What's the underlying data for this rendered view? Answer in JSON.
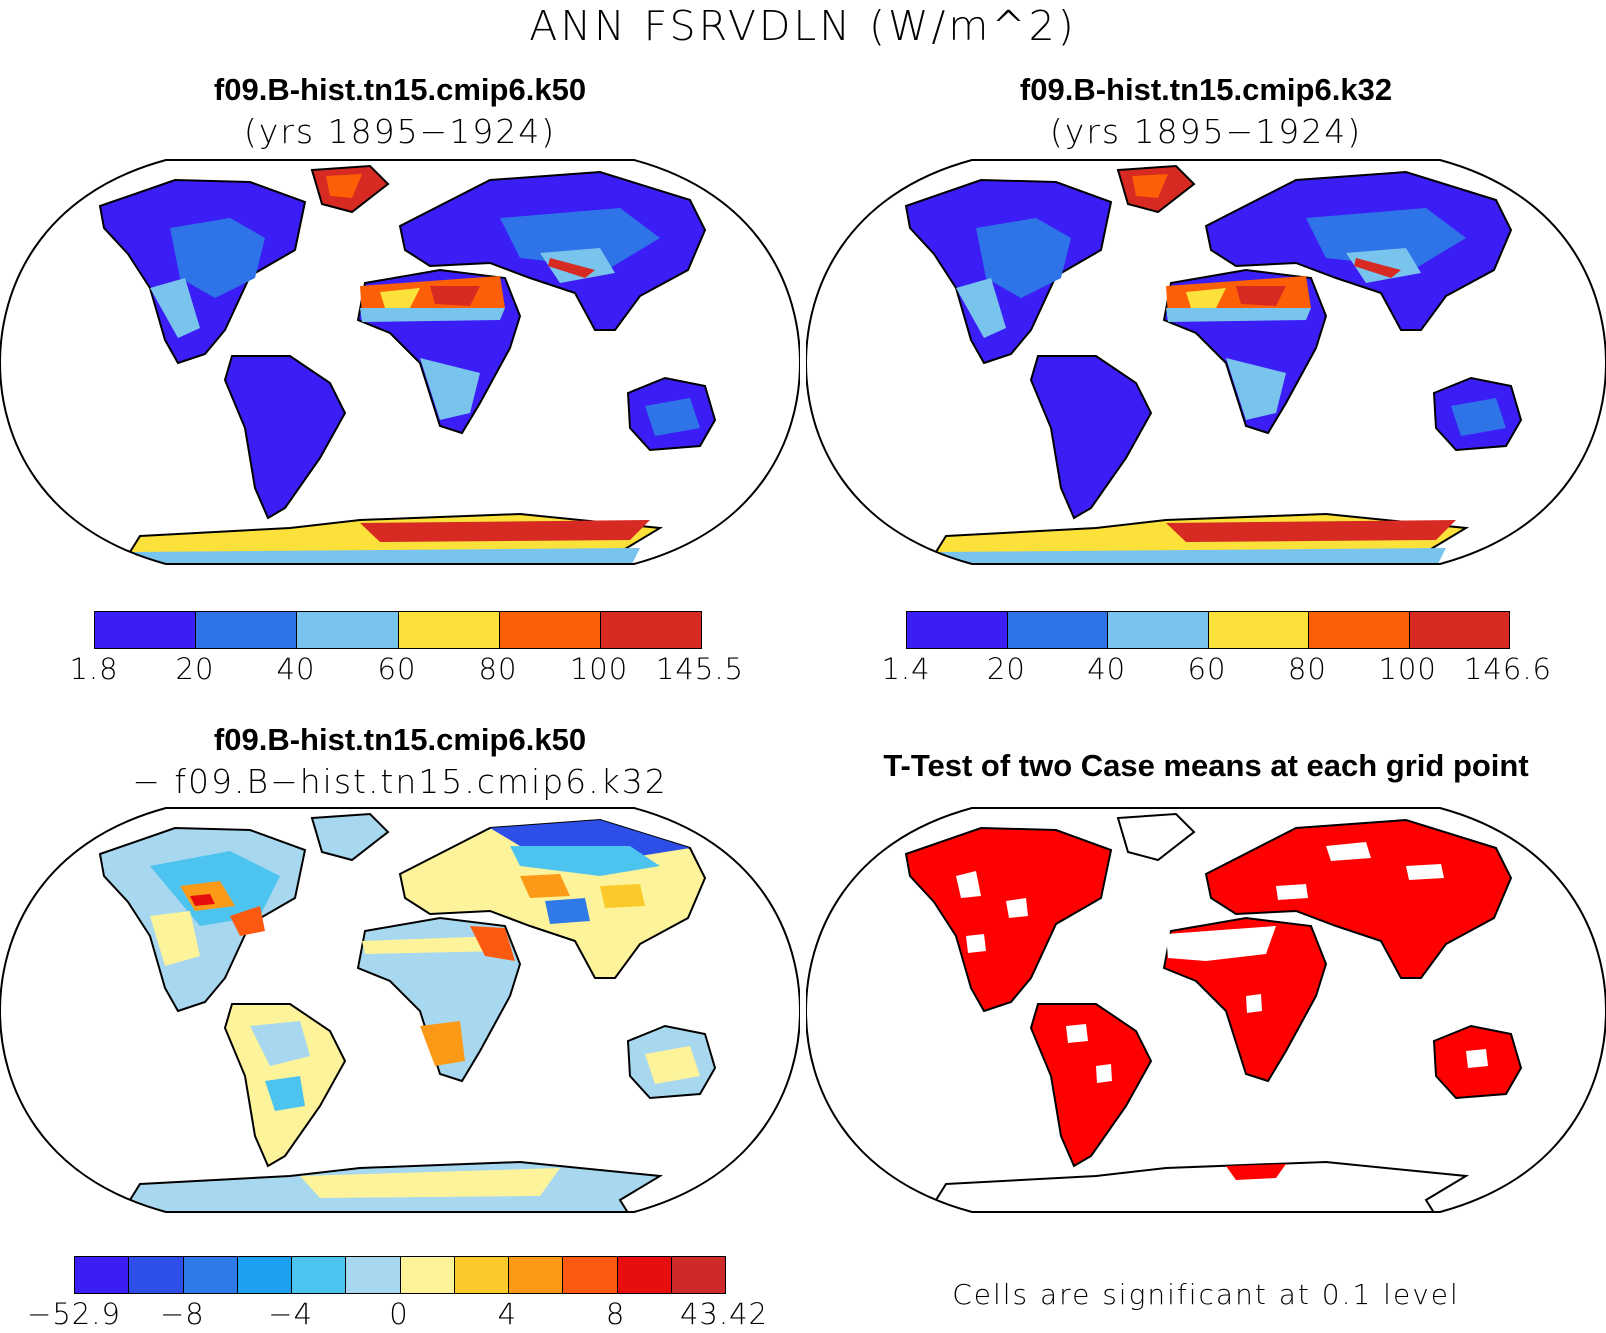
{
  "title": "ANN FSRVDLN (W/m^2)",
  "panels": {
    "top_left": {
      "title": "f09.B-hist.tn15.cmip6.k50",
      "subtitle": "(yrs 1895−1924)",
      "colorbar": {
        "colors": [
          "#3a1ef5",
          "#2f73e8",
          "#79c4ec",
          "#fbe13a",
          "#fc5f05",
          "#d62a23"
        ],
        "ticks": [
          "1.8",
          "20",
          "40",
          "60",
          "80",
          "100",
          "145.5"
        ]
      }
    },
    "top_right": {
      "title": "f09.B-hist.tn15.cmip6.k32",
      "subtitle": "(yrs 1895−1924)",
      "colorbar": {
        "colors": [
          "#3a1ef5",
          "#2f73e8",
          "#79c4ec",
          "#fbe13a",
          "#fc5f05",
          "#d62a23"
        ],
        "ticks": [
          "1.4",
          "20",
          "40",
          "60",
          "80",
          "100",
          "146.6"
        ]
      }
    },
    "bottom_left": {
      "title": "f09.B-hist.tn15.cmip6.k50",
      "subtitle": "− f09.B−hist.tn15.cmip6.k32",
      "colorbar": {
        "colors": [
          "#3a1ef5",
          "#2e4ee8",
          "#2f7ae8",
          "#1ea0f0",
          "#4dc3f0",
          "#a7d8f0",
          "#fdf39a",
          "#fcc92a",
          "#fc9a18",
          "#fc5a10",
          "#e80e0e",
          "#cf2a2a"
        ],
        "ticks": [
          "−52.9",
          "−8",
          "−4",
          "0",
          "4",
          "8",
          "43.42"
        ]
      }
    },
    "bottom_right": {
      "title": "T-Test of two Case means at each grid point",
      "note": "Cells are significant at 0.1 level"
    }
  }
}
